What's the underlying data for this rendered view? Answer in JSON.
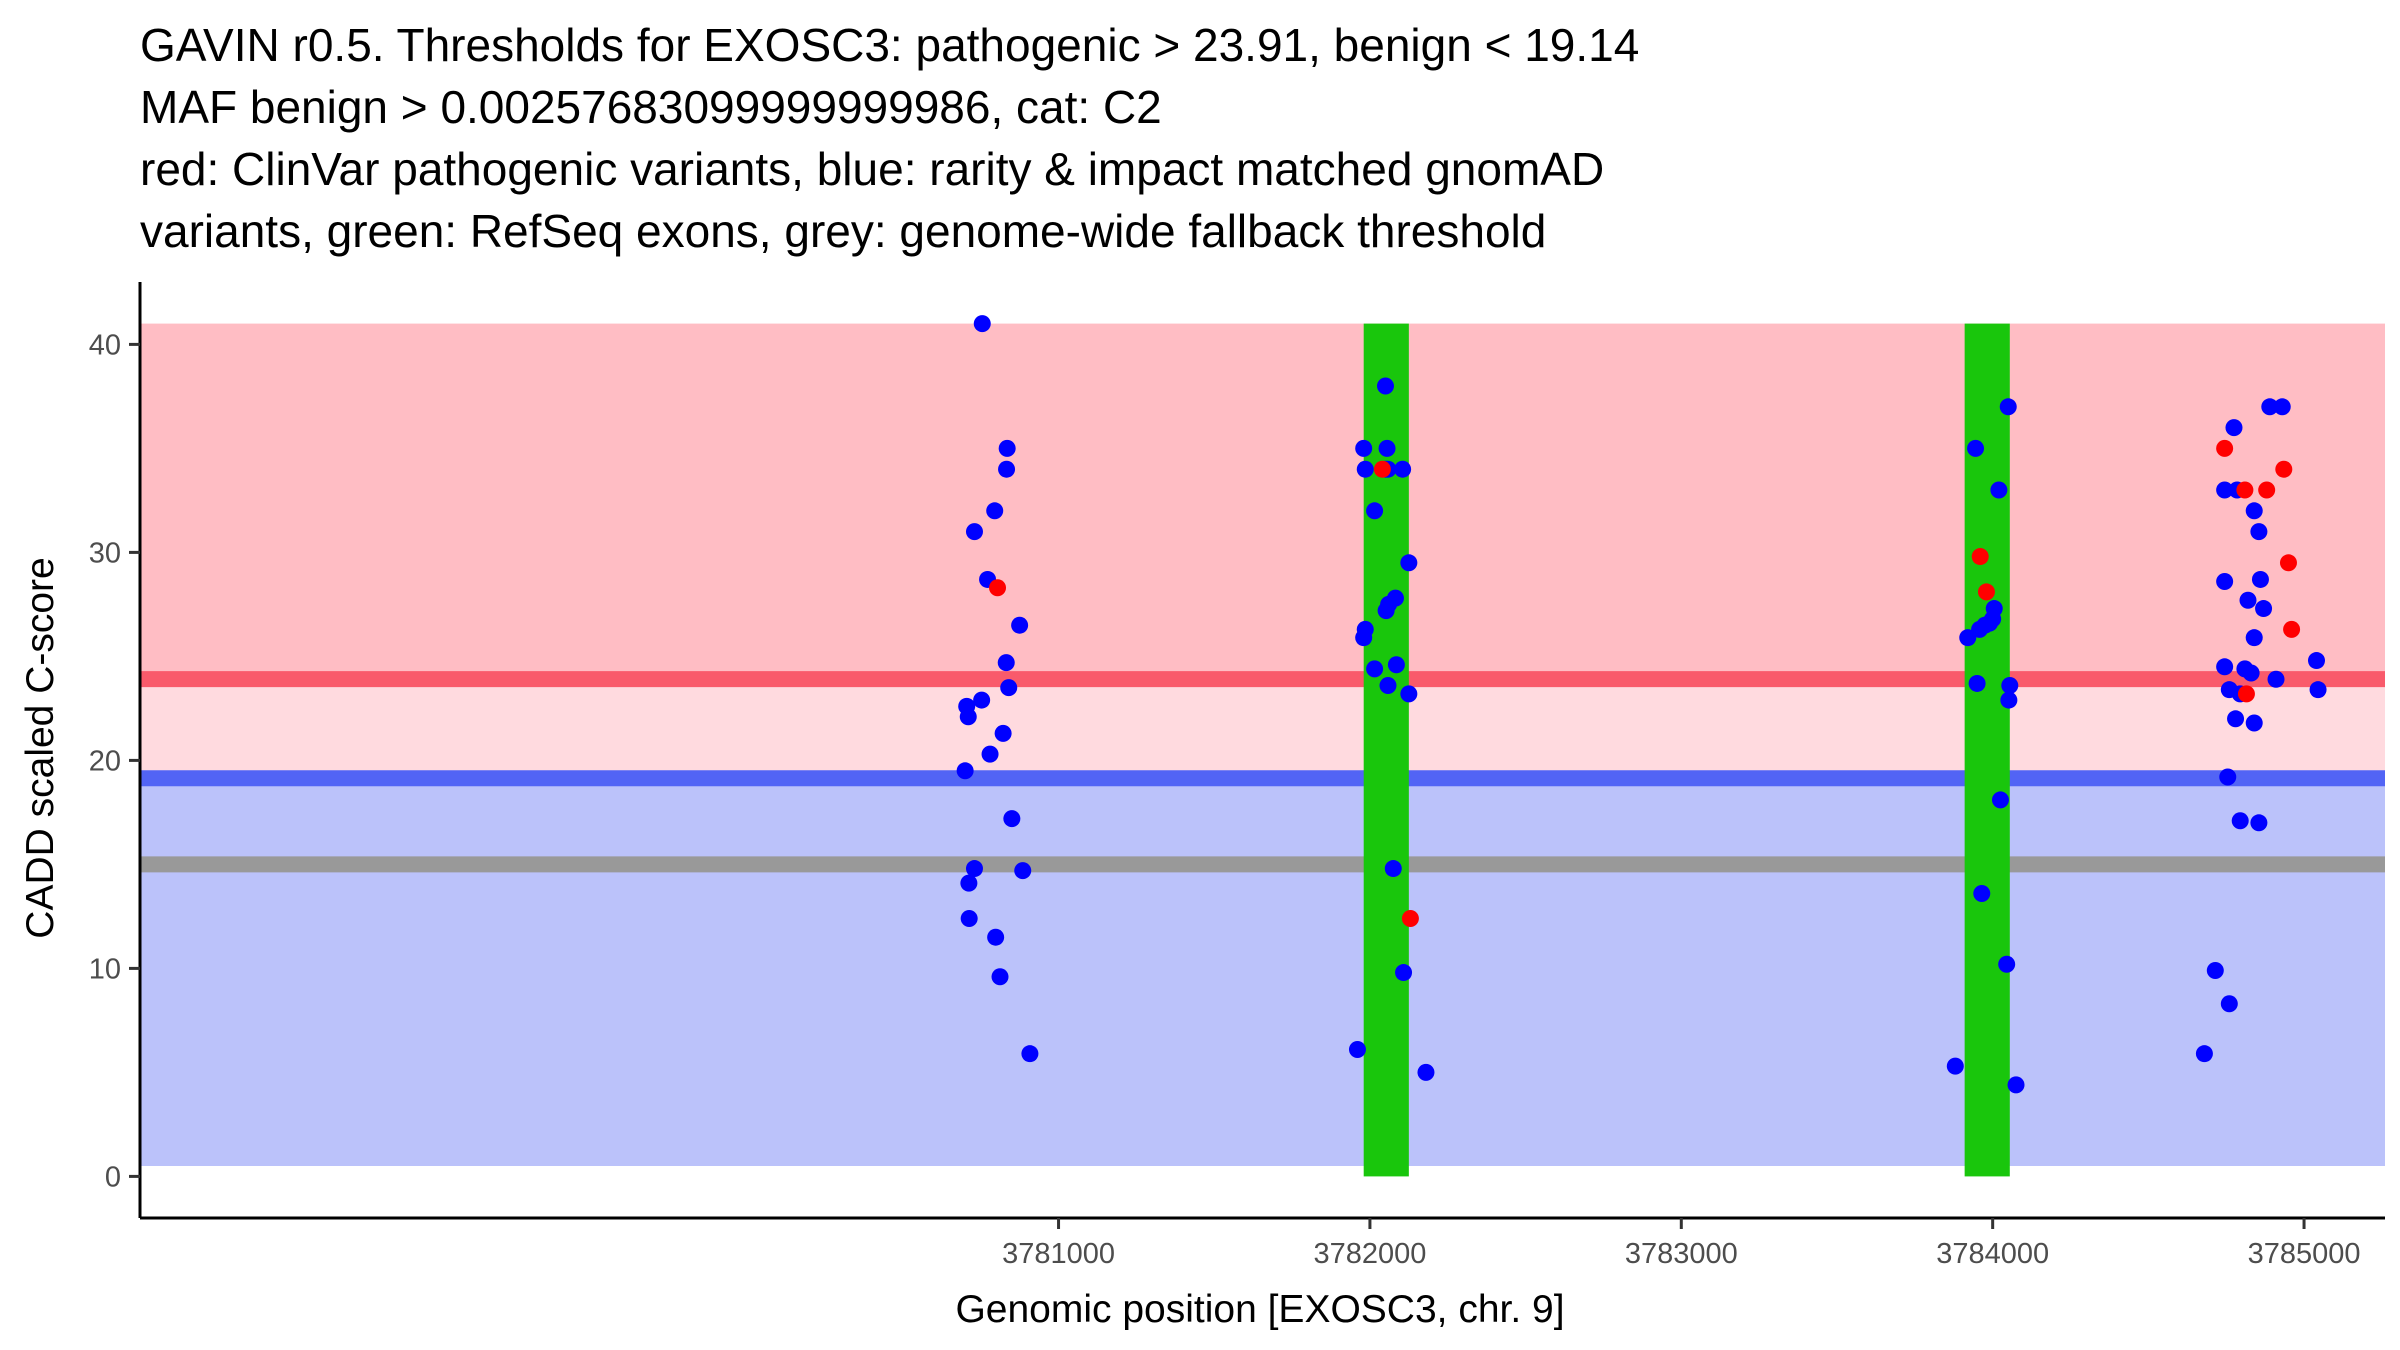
{
  "chart_data": {
    "type": "scatter",
    "title_lines": [
      "GAVIN r0.5. Thresholds for EXOSC3: pathogenic > 23.91, benign < 19.14",
      "MAF benign > 0.00257683099999999986, cat: C2",
      "red: ClinVar pathogenic variants, blue: rarity & impact matched gnomAD",
      "variants, green: RefSeq exons, grey: genome-wide fallback threshold"
    ],
    "xlabel": "Genomic position [EXOSC3, chr. 9]",
    "ylabel": "CADD scaled C-score",
    "xlim": [
      3778050,
      3785260
    ],
    "ylim": [
      -2,
      43
    ],
    "x_ticks": [
      3781000,
      3782000,
      3783000,
      3784000,
      3785000
    ],
    "y_ticks": [
      0,
      10,
      20,
      30,
      40
    ],
    "grid": false,
    "thresholds": {
      "pathogenic": 23.91,
      "benign": 19.14,
      "fallback": 15
    },
    "bands": [
      {
        "name": "pathogenic-region",
        "y0": 23.91,
        "y1": 41,
        "color": "#FFBDC4"
      },
      {
        "name": "intermediate-region",
        "y0": 19.14,
        "y1": 23.91,
        "color": "#FFDADF"
      },
      {
        "name": "benign-region",
        "y0": 0.5,
        "y1": 19.14,
        "color": "#BBC2FA"
      }
    ],
    "lines": [
      {
        "name": "pathogenic-threshold-line",
        "y": 23.91,
        "color": "#F95A6B"
      },
      {
        "name": "benign-threshold-line",
        "y": 19.14,
        "color": "#5264F5"
      },
      {
        "name": "fallback-threshold-line",
        "y": 15,
        "color": "#999999"
      }
    ],
    "exons": [
      {
        "x0": 3781980,
        "x1": 3782125,
        "y0": 0,
        "y1": 41,
        "color": "#19C60C"
      },
      {
        "x0": 3783910,
        "x1": 3784055,
        "y0": 0,
        "y1": 41,
        "color": "#19C60C"
      }
    ],
    "series": [
      {
        "name": "ClinVar pathogenic variants",
        "color": "#FF0000",
        "points": [
          [
            3780804,
            28.3
          ],
          [
            3782040,
            34.0
          ],
          [
            3782130,
            12.4
          ],
          [
            3783960,
            29.8
          ],
          [
            3783980,
            28.1
          ],
          [
            3784745,
            35.0
          ],
          [
            3784810,
            33.0
          ],
          [
            3784815,
            23.2
          ],
          [
            3784880,
            33.0
          ],
          [
            3784935,
            34.0
          ],
          [
            3784950,
            29.5
          ],
          [
            3784960,
            26.3
          ]
        ]
      },
      {
        "name": "gnomAD rarity & impact matched variants",
        "color": "#0000FF",
        "points": [
          [
            3780755,
            41.0
          ],
          [
            3780835,
            35.0
          ],
          [
            3780833,
            34.0
          ],
          [
            3780795,
            32.0
          ],
          [
            3780730,
            31.0
          ],
          [
            3780772,
            28.7
          ],
          [
            3780875,
            26.5
          ],
          [
            3780832,
            24.7
          ],
          [
            3780840,
            23.5
          ],
          [
            3780753,
            22.9
          ],
          [
            3780705,
            22.6
          ],
          [
            3780710,
            22.1
          ],
          [
            3780822,
            21.3
          ],
          [
            3780780,
            20.3
          ],
          [
            3780700,
            19.5
          ],
          [
            3780850,
            17.2
          ],
          [
            3780730,
            14.8
          ],
          [
            3780712,
            14.1
          ],
          [
            3780885,
            14.7
          ],
          [
            3780713,
            12.4
          ],
          [
            3780798,
            11.5
          ],
          [
            3780812,
            9.6
          ],
          [
            3780908,
            5.9
          ],
          [
            3781980,
            35.0
          ],
          [
            3782055,
            35.0
          ],
          [
            3781985,
            34.0
          ],
          [
            3782050,
            34.0
          ],
          [
            3782058,
            34.0
          ],
          [
            3782105,
            34.0
          ],
          [
            3782050,
            38.0
          ],
          [
            3782015,
            32.0
          ],
          [
            3782125,
            29.5
          ],
          [
            3782082,
            27.8
          ],
          [
            3782060,
            27.5
          ],
          [
            3782052,
            27.2
          ],
          [
            3781985,
            26.3
          ],
          [
            3781980,
            25.9
          ],
          [
            3782015,
            24.4
          ],
          [
            3782085,
            24.6
          ],
          [
            3782058,
            23.6
          ],
          [
            3782125,
            23.2
          ],
          [
            3782075,
            14.8
          ],
          [
            3782108,
            9.8
          ],
          [
            3781960,
            6.1
          ],
          [
            3782180,
            5.0
          ],
          [
            3783945,
            35.0
          ],
          [
            3784020,
            33.0
          ],
          [
            3784050,
            37.0
          ],
          [
            3784005,
            27.3
          ],
          [
            3784000,
            26.8
          ],
          [
            3783990,
            26.6
          ],
          [
            3783975,
            26.5
          ],
          [
            3783958,
            26.3
          ],
          [
            3783920,
            25.9
          ],
          [
            3783950,
            23.7
          ],
          [
            3784055,
            23.6
          ],
          [
            3784052,
            22.9
          ],
          [
            3784025,
            18.1
          ],
          [
            3783965,
            13.6
          ],
          [
            3784045,
            10.2
          ],
          [
            3783880,
            5.3
          ],
          [
            3784075,
            4.4
          ],
          [
            3784775,
            36.0
          ],
          [
            3784890,
            37.0
          ],
          [
            3784930,
            37.0
          ],
          [
            3784745,
            33.0
          ],
          [
            3784785,
            33.0
          ],
          [
            3784840,
            32.0
          ],
          [
            3784855,
            31.0
          ],
          [
            3784745,
            28.6
          ],
          [
            3784860,
            28.7
          ],
          [
            3784820,
            27.7
          ],
          [
            3784870,
            27.3
          ],
          [
            3784840,
            25.9
          ],
          [
            3784745,
            24.5
          ],
          [
            3784810,
            24.4
          ],
          [
            3784830,
            24.2
          ],
          [
            3784760,
            23.4
          ],
          [
            3784795,
            23.2
          ],
          [
            3784910,
            23.9
          ],
          [
            3785040,
            24.8
          ],
          [
            3785045,
            23.4
          ],
          [
            3784780,
            22.0
          ],
          [
            3784840,
            21.8
          ],
          [
            3784755,
            19.2
          ],
          [
            3784795,
            17.1
          ],
          [
            3784855,
            17.0
          ],
          [
            3784715,
            9.9
          ],
          [
            3784760,
            8.3
          ],
          [
            3784680,
            5.9
          ]
        ]
      }
    ]
  }
}
